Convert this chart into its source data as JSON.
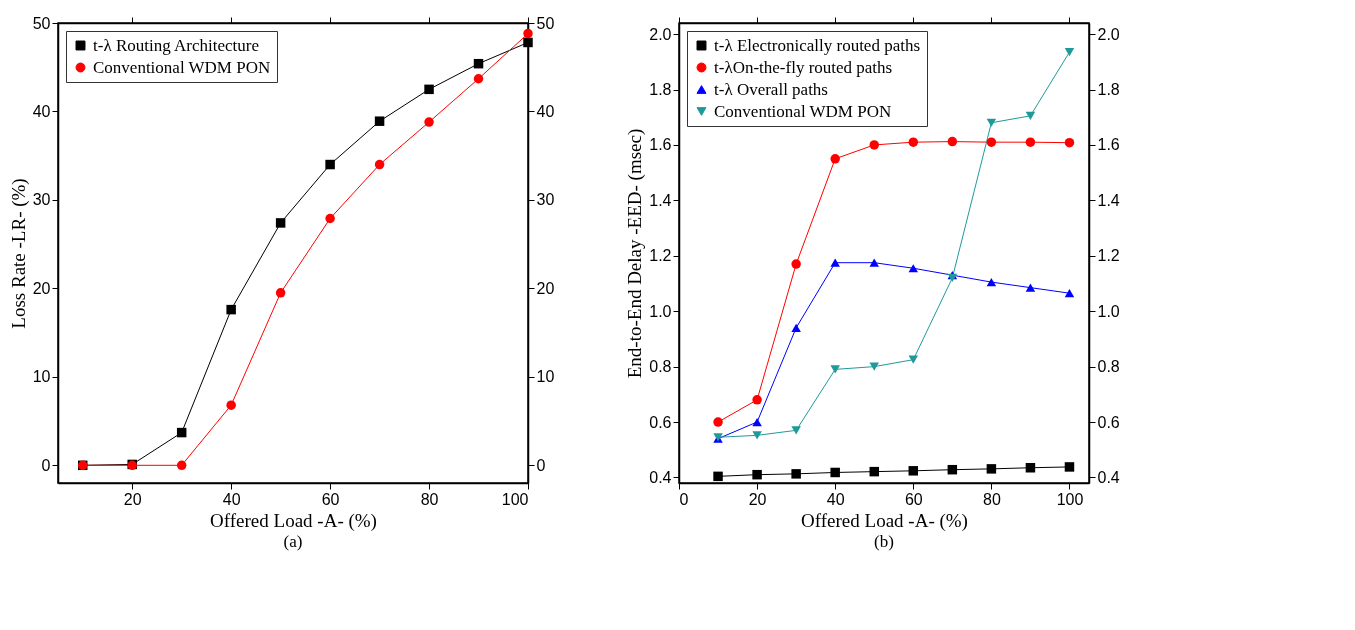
{
  "chart_data": [
    {
      "type": "line",
      "xlabel": "Offered Load -A- (%)",
      "ylabel": "Loss Rate -LR- (%)",
      "annotations": [
        "(a)"
      ],
      "x": [
        10,
        20,
        30,
        40,
        50,
        60,
        70,
        80,
        90,
        100
      ],
      "xlim": [
        5,
        100
      ],
      "xticks": [
        20,
        40,
        60,
        80,
        100
      ],
      "ylim": [
        -2,
        50
      ],
      "yticks": [
        0,
        10,
        20,
        30,
        40,
        50
      ],
      "y2lim": [
        -2,
        50
      ],
      "y2ticks": [
        0,
        10,
        20,
        30,
        40,
        50
      ],
      "grid": false,
      "legend": "top left",
      "series": [
        {
          "name": "t-λ Routing Architecture",
          "color": "#000000",
          "marker": "square",
          "values": [
            0,
            0.1,
            3.7,
            17.6,
            27.4,
            34,
            38.9,
            42.5,
            45.4,
            47.8
          ]
        },
        {
          "name": "Conventional WDM PON",
          "color": "#ff0000",
          "marker": "circle",
          "values": [
            0,
            0,
            0,
            6.8,
            19.5,
            27.9,
            34,
            38.8,
            43.7,
            48.8
          ]
        }
      ]
    },
    {
      "type": "line",
      "xlabel": "Offered Load -A- (%)",
      "ylabel": "End-to-End Delay -EED- (msec)",
      "annotations": [
        "(b)"
      ],
      "x": [
        10,
        20,
        30,
        40,
        50,
        60,
        70,
        80,
        90,
        100
      ],
      "xlim": [
        0,
        105
      ],
      "xticks": [
        0,
        20,
        40,
        60,
        80,
        100
      ],
      "ylim": [
        0.38,
        2.04
      ],
      "yticks": [
        0.4,
        0.6,
        0.8,
        {
          "value": 1,
          "label": "1.0"
        },
        1.2,
        1.4,
        1.6,
        1.8,
        {
          "value": 2,
          "label": "2.0"
        }
      ],
      "y2lim": [
        0.38,
        2.04
      ],
      "y2ticks": [
        0.4,
        0.6,
        0.8,
        {
          "value": 1,
          "label": "1.0"
        },
        1.2,
        1.4,
        1.6,
        1.8,
        {
          "value": 2,
          "label": "2.0"
        }
      ],
      "grid": false,
      "legend": "top left",
      "series": [
        {
          "name": "t-λ Electronically routed paths",
          "color": "#000000",
          "marker": "square",
          "values": [
            0.404,
            0.41,
            0.413,
            0.418,
            0.421,
            0.424,
            0.428,
            0.431,
            0.435,
            0.438
          ]
        },
        {
          "name": "t-λOn-the-fly routed paths",
          "color": "#ff0000",
          "marker": "circle",
          "values": [
            0.6,
            0.68,
            1.17,
            1.55,
            1.6,
            1.61,
            1.612,
            1.61,
            1.61,
            1.608
          ]
        },
        {
          "name": "t-λ Overall paths",
          "color": "#0000ff",
          "marker": "triangle",
          "values": [
            0.54,
            0.6,
            0.94,
            1.175,
            1.175,
            1.155,
            1.13,
            1.105,
            1.085,
            1.065
          ]
        },
        {
          "name": "Conventional WDM PON",
          "color": "#1f9a9a",
          "marker": "triangle-down",
          "values": [
            0.545,
            0.552,
            0.57,
            0.79,
            0.8,
            0.825,
            1.12,
            1.68,
            1.705,
            1.935
          ]
        }
      ]
    }
  ]
}
